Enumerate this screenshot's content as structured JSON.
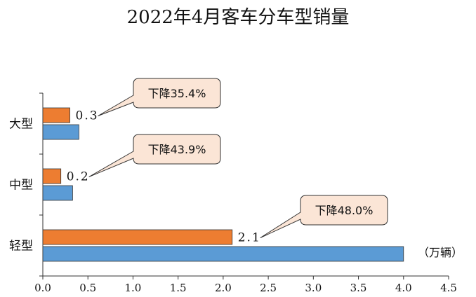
{
  "chart_data": {
    "type": "bar",
    "title": "2022年4月客车分车型销量",
    "unit_label": "（万辆）",
    "categories": [
      "大型",
      "中型",
      "轻型"
    ],
    "series": [
      {
        "color": "#ED7D31",
        "values": [
          0.3,
          0.2,
          2.1
        ],
        "value_labels": [
          "0.3",
          "0.2",
          "2.1"
        ]
      },
      {
        "color": "#5B9BD5",
        "values": [
          0.4,
          0.33,
          4.0
        ]
      }
    ],
    "annotations": [
      "下降35.4%",
      "下降43.9%",
      "下降48.0%"
    ],
    "xlim": [
      0,
      4.5
    ],
    "xticks": [
      "0.0",
      "0.5",
      "1.0",
      "1.5",
      "2.0",
      "2.5",
      "3.0",
      "3.5",
      "4.0",
      "4.5"
    ],
    "grid": false,
    "orientation": "horizontal"
  }
}
